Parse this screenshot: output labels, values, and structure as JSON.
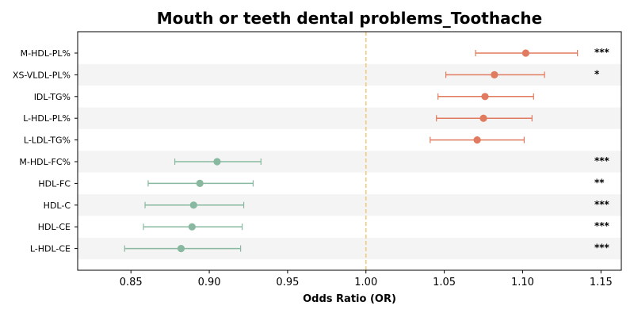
{
  "chart_data": {
    "type": "forest",
    "title": "Mouth or teeth dental problems_Toothache",
    "xlabel": "Odds Ratio (OR)",
    "xlim": [
      0.816,
      1.163
    ],
    "xticks": [
      0.85,
      0.9,
      0.95,
      1.0,
      1.05,
      1.1,
      1.15
    ],
    "xtick_labels": [
      "0.85",
      "0.90",
      "0.95",
      "1.00",
      "1.05",
      "1.10",
      "1.15"
    ],
    "reference_line": 1.0,
    "reference_color": "#f4c97a",
    "colors": {
      "risk": "#e07b5f",
      "protective": "#88b9a0",
      "band": "#f4f4f4"
    },
    "categories": [
      "M-HDL-PL%",
      "XS-VLDL-PL%",
      "IDL-TG%",
      "L-HDL-PL%",
      "L-LDL-TG%",
      "M-HDL-FC%",
      "HDL-FC",
      "HDL-C",
      "HDL-CE",
      "L-HDL-CE"
    ],
    "or": [
      1.102,
      1.082,
      1.076,
      1.075,
      1.071,
      0.905,
      0.894,
      0.89,
      0.889,
      0.882
    ],
    "ci_low": [
      1.07,
      1.051,
      1.046,
      1.045,
      1.041,
      0.878,
      0.861,
      0.859,
      0.858,
      0.846
    ],
    "ci_high": [
      1.135,
      1.114,
      1.107,
      1.106,
      1.101,
      0.933,
      0.928,
      0.922,
      0.921,
      0.92
    ],
    "significance": [
      "***",
      "*",
      "",
      "",
      "",
      "***",
      "**",
      "***",
      "***",
      "***"
    ]
  }
}
